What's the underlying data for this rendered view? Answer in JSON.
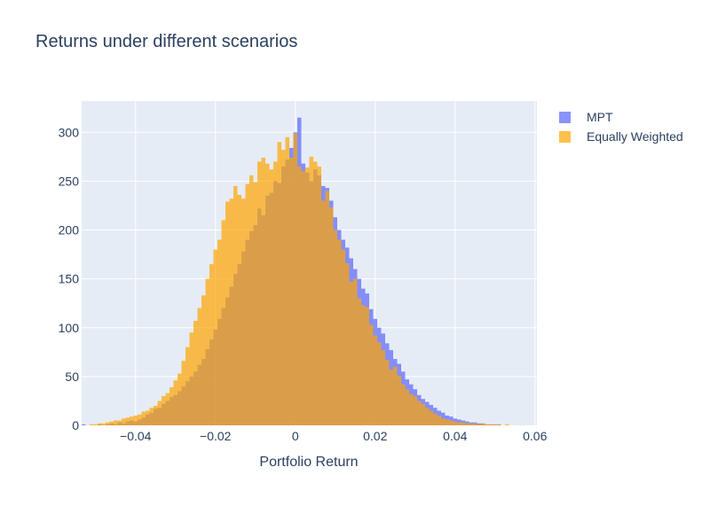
{
  "chart_data": {
    "type": "histogram",
    "title": "Returns under different scenarios",
    "xlabel": "Portfolio Return",
    "ylabel": "",
    "xlim": [
      -0.0535,
      0.0605
    ],
    "ylim": [
      0,
      332
    ],
    "xticks": [
      -0.04,
      -0.02,
      0,
      0.02,
      0.04,
      0.06
    ],
    "xtick_labels": [
      "−0.04",
      "−0.02",
      "0",
      "0.02",
      "0.04",
      "0.06"
    ],
    "yticks": [
      0,
      50,
      100,
      150,
      200,
      250,
      300
    ],
    "ytick_labels": [
      "0",
      "50",
      "100",
      "150",
      "200",
      "250",
      "300"
    ],
    "grid": true,
    "legend_position": "top-right",
    "barmode": "overlay",
    "bin_start": -0.0535,
    "bin_width": 0.001,
    "series": [
      {
        "name": "MPT",
        "color": "#636efa",
        "opacity": 0.75,
        "values": [
          1,
          0,
          0,
          0,
          1,
          0,
          1,
          2,
          1,
          3,
          2,
          4,
          5,
          4,
          6,
          8,
          11,
          13,
          17,
          18,
          22,
          25,
          29,
          31,
          35,
          40,
          45,
          50,
          55,
          62,
          68,
          78,
          88,
          98,
          109,
          120,
          131,
          142,
          155,
          165,
          178,
          190,
          199,
          205,
          222,
          215,
          235,
          238,
          250,
          248,
          265,
          272,
          284,
          300,
          315,
          268,
          259,
          250,
          262,
          256,
          245,
          243,
          230,
          213,
          200,
          190,
          182,
          171,
          160,
          150,
          140,
          135,
          119,
          109,
          100,
          94,
          84,
          77,
          68,
          63,
          55,
          47,
          42,
          37,
          31,
          27,
          24,
          21,
          18,
          15,
          13,
          10,
          9,
          7,
          6,
          5,
          4,
          3,
          3,
          2,
          2,
          1,
          1,
          1,
          1,
          0,
          0,
          0,
          0,
          0,
          0,
          0,
          0,
          0,
          0
        ]
      },
      {
        "name": "Equally Weighted",
        "color": "#ffa500",
        "opacity": 0.7,
        "values": [
          0,
          0,
          1,
          1,
          2,
          2,
          3,
          4,
          5,
          5,
          7,
          8,
          9,
          10,
          11,
          14,
          15,
          18,
          20,
          25,
          30,
          33,
          39,
          46,
          53,
          66,
          80,
          95,
          107,
          120,
          133,
          150,
          165,
          180,
          190,
          210,
          229,
          232,
          245,
          236,
          232,
          247,
          256,
          249,
          270,
          274,
          268,
          262,
          270,
          290,
          282,
          295,
          274,
          299,
          265,
          260,
          264,
          275,
          270,
          265,
          230,
          240,
          223,
          200,
          190,
          180,
          166,
          147,
          150,
          130,
          123,
          121,
          103,
          92,
          85,
          77,
          67,
          57,
          60,
          51,
          42,
          37,
          32,
          30,
          25,
          22,
          18,
          15,
          12,
          10,
          7,
          6,
          5,
          4,
          3,
          3,
          2,
          2,
          2,
          1,
          2,
          1,
          1,
          1,
          1,
          0,
          1,
          0,
          0,
          0,
          0,
          0,
          0,
          0
        ]
      }
    ]
  }
}
